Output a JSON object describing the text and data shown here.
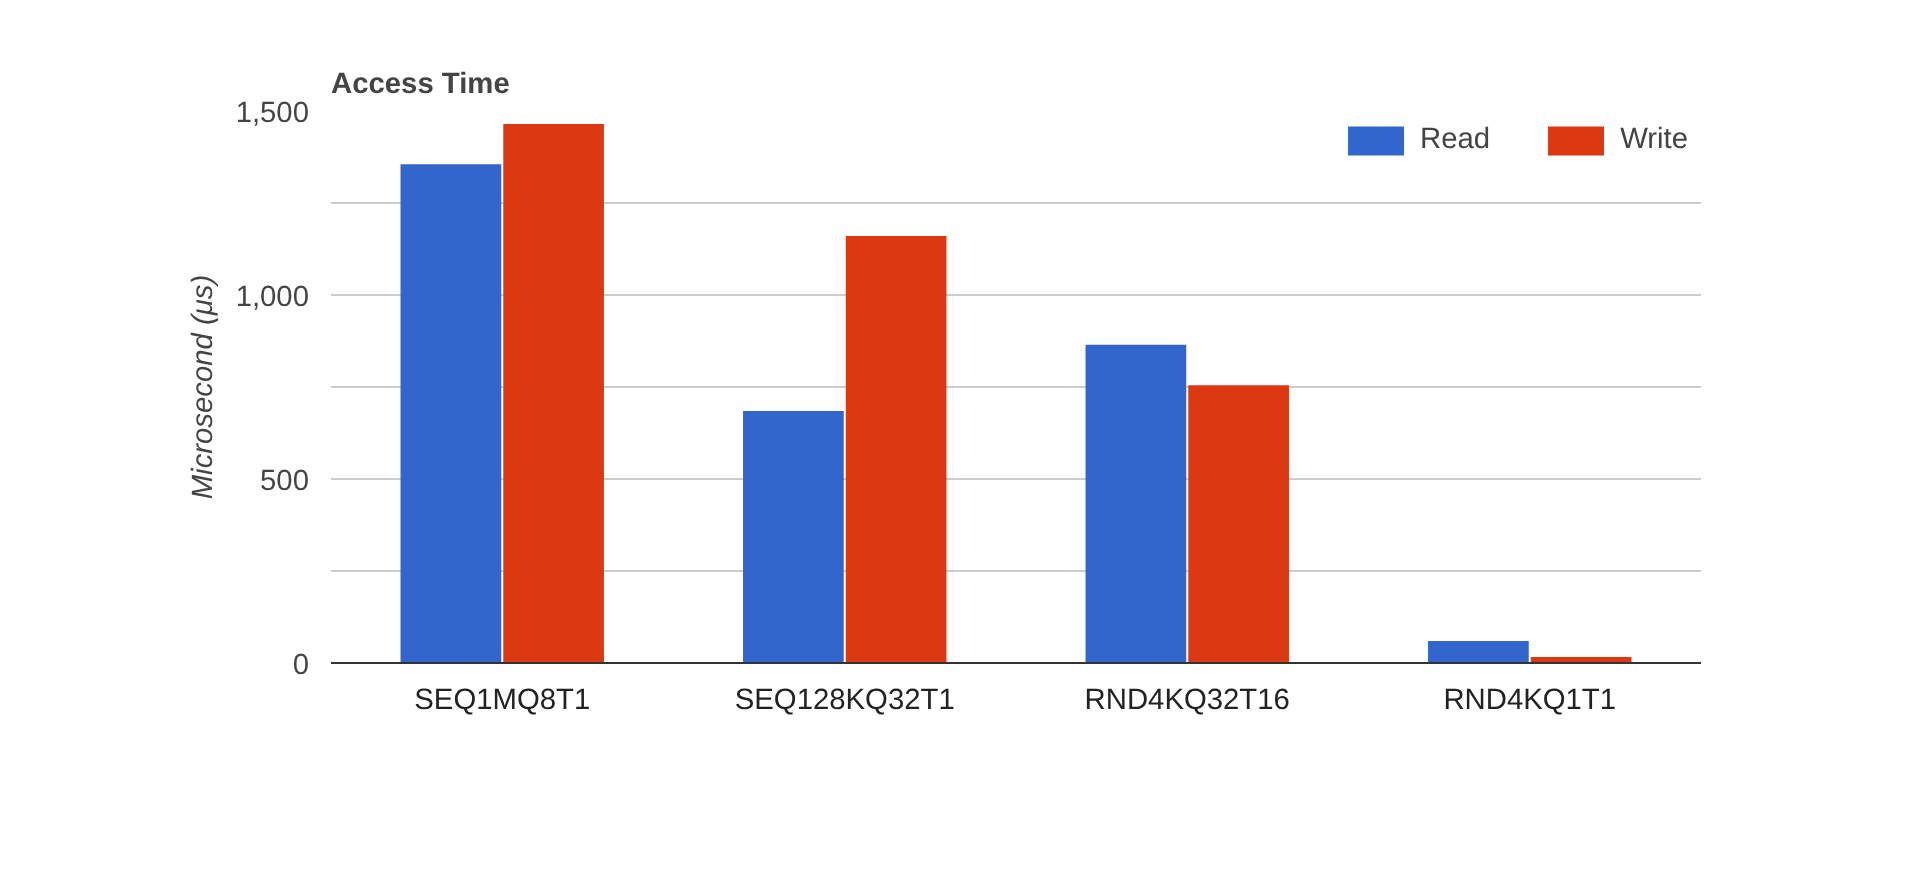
{
  "chart_data": {
    "type": "bar",
    "title": "Access Time",
    "ylabel": "Microsecond (μs)",
    "categories": [
      "SEQ1MQ8T1",
      "SEQ128KQ32T1",
      "RND4KQ32T16",
      "RND4KQ1T1"
    ],
    "series": [
      {
        "name": "Read",
        "color": "#3366cc",
        "values": [
          1355,
          685,
          865,
          60
        ]
      },
      {
        "name": "Write",
        "color": "#dc3912",
        "values": [
          1465,
          1160,
          755,
          16
        ]
      }
    ],
    "ylim": [
      0,
      1500
    ],
    "yticks": [
      0,
      {
        "value": 250,
        "label": null
      },
      500,
      {
        "value": 750,
        "label": null
      },
      {
        "value": 1000,
        "label": "1,000"
      },
      {
        "value": 1250,
        "label": null
      },
      {
        "value": 1500,
        "label": "1,500"
      }
    ],
    "grid": "y",
    "legend": "top right"
  }
}
